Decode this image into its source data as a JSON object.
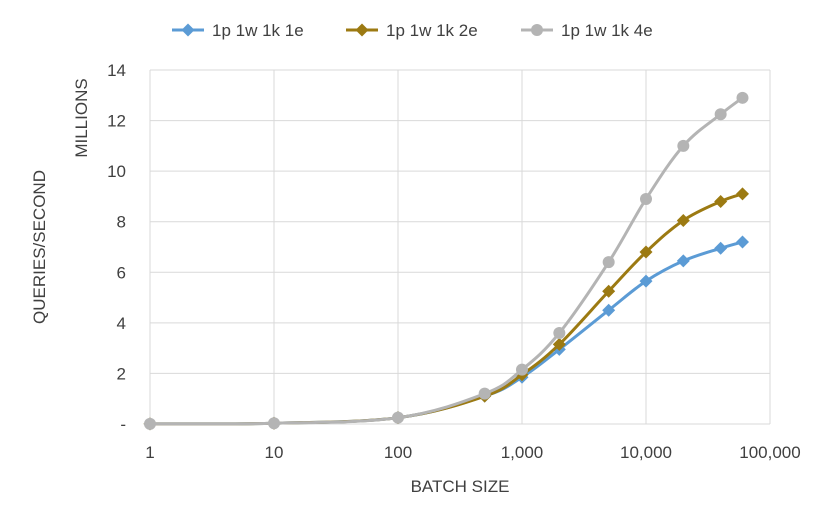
{
  "chart_data": {
    "type": "line",
    "title": "",
    "xlabel": "BATCH SIZE",
    "ylabel": "QUERIES/SECOND",
    "y_units_label": "MILLIONS",
    "x_scale": "log",
    "xlim": [
      1,
      100000
    ],
    "ylim": [
      0,
      14
    ],
    "y_ticks": [
      0,
      2,
      4,
      6,
      8,
      10,
      12,
      14
    ],
    "y_tick_labels": [
      "-",
      "2",
      "4",
      "6",
      "8",
      "10",
      "12",
      "14"
    ],
    "x_ticks": [
      1,
      10,
      100,
      1000,
      10000,
      100000
    ],
    "x_tick_labels": [
      "1",
      "10",
      "100",
      "1,000",
      "10,000",
      "100,000"
    ],
    "grid": true,
    "legend_position": "top",
    "series": [
      {
        "name": "1p 1w 1k 1e",
        "color": "#5B9BD5",
        "marker": "diamond",
        "x": [
          1,
          10,
          100,
          500,
          1000,
          2000,
          5000,
          10000,
          20000,
          40000,
          60000
        ],
        "y": [
          0.005,
          0.03,
          0.25,
          1.1,
          1.85,
          2.95,
          4.5,
          5.65,
          6.45,
          6.95,
          7.2
        ]
      },
      {
        "name": "1p 1w 1k 2e",
        "color": "#9C7A12",
        "marker": "diamond",
        "x": [
          1,
          10,
          100,
          500,
          1000,
          2000,
          5000,
          10000,
          20000,
          40000,
          60000
        ],
        "y": [
          0.005,
          0.03,
          0.25,
          1.1,
          1.95,
          3.15,
          5.25,
          6.8,
          8.05,
          8.8,
          9.1
        ]
      },
      {
        "name": "1p 1w 1k 4e",
        "color": "#B4B4B4",
        "marker": "circle",
        "x": [
          1,
          10,
          100,
          500,
          1000,
          2000,
          5000,
          10000,
          20000,
          40000,
          60000
        ],
        "y": [
          0.005,
          0.03,
          0.25,
          1.2,
          2.15,
          3.6,
          6.4,
          8.9,
          11.0,
          12.25,
          12.9
        ]
      }
    ]
  }
}
